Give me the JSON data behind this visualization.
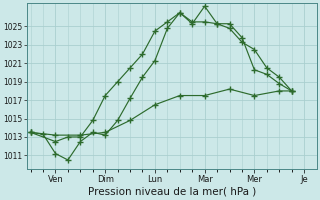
{
  "bg_color": "#cce8e8",
  "grid_color": "#aacfcf",
  "line_color": "#2d6b2d",
  "marker_color": "#2d6b2d",
  "xlabel": "Pression niveau de la mer( hPa )",
  "xlabel_fontsize": 7.5,
  "ylabel_ticks": [
    1011,
    1013,
    1015,
    1017,
    1019,
    1021,
    1023,
    1025
  ],
  "ylim": [
    1009.5,
    1027.5
  ],
  "day_labels": [
    "Ven",
    "Dim",
    "Lun",
    "Mar",
    "Mer",
    "Je"
  ],
  "day_positions": [
    2,
    6,
    10,
    14,
    18,
    22
  ],
  "xlim": [
    -0.3,
    23
  ],
  "series1_x": [
    0,
    1,
    2,
    3,
    4,
    5,
    6,
    7,
    8,
    9,
    10,
    11,
    12,
    13,
    14,
    15,
    16,
    17,
    18,
    19,
    20,
    21
  ],
  "series1_y": [
    1013.5,
    1013.3,
    1011.2,
    1010.5,
    1012.5,
    1013.5,
    1013.2,
    1014.8,
    1017.2,
    1019.5,
    1021.3,
    1024.8,
    1026.5,
    1025.3,
    1027.2,
    1025.3,
    1025.3,
    1023.8,
    1020.3,
    1019.8,
    1018.8,
    1018.0
  ],
  "series2_x": [
    0,
    2,
    3,
    4,
    5,
    6,
    7,
    8,
    9,
    10,
    11,
    12,
    13,
    14,
    15,
    16,
    17,
    18,
    19,
    20,
    21
  ],
  "series2_y": [
    1013.5,
    1012.5,
    1013.0,
    1013.0,
    1014.8,
    1017.5,
    1019.0,
    1020.5,
    1022.0,
    1024.5,
    1025.5,
    1026.5,
    1025.5,
    1025.5,
    1025.3,
    1024.8,
    1023.3,
    1022.5,
    1020.5,
    1019.5,
    1018.0
  ],
  "series3_x": [
    0,
    2,
    4,
    6,
    8,
    10,
    12,
    14,
    16,
    18,
    20,
    21
  ],
  "series3_y": [
    1013.5,
    1013.2,
    1013.2,
    1013.5,
    1014.8,
    1016.5,
    1017.5,
    1017.5,
    1018.2,
    1017.5,
    1018.0,
    1018.0
  ]
}
